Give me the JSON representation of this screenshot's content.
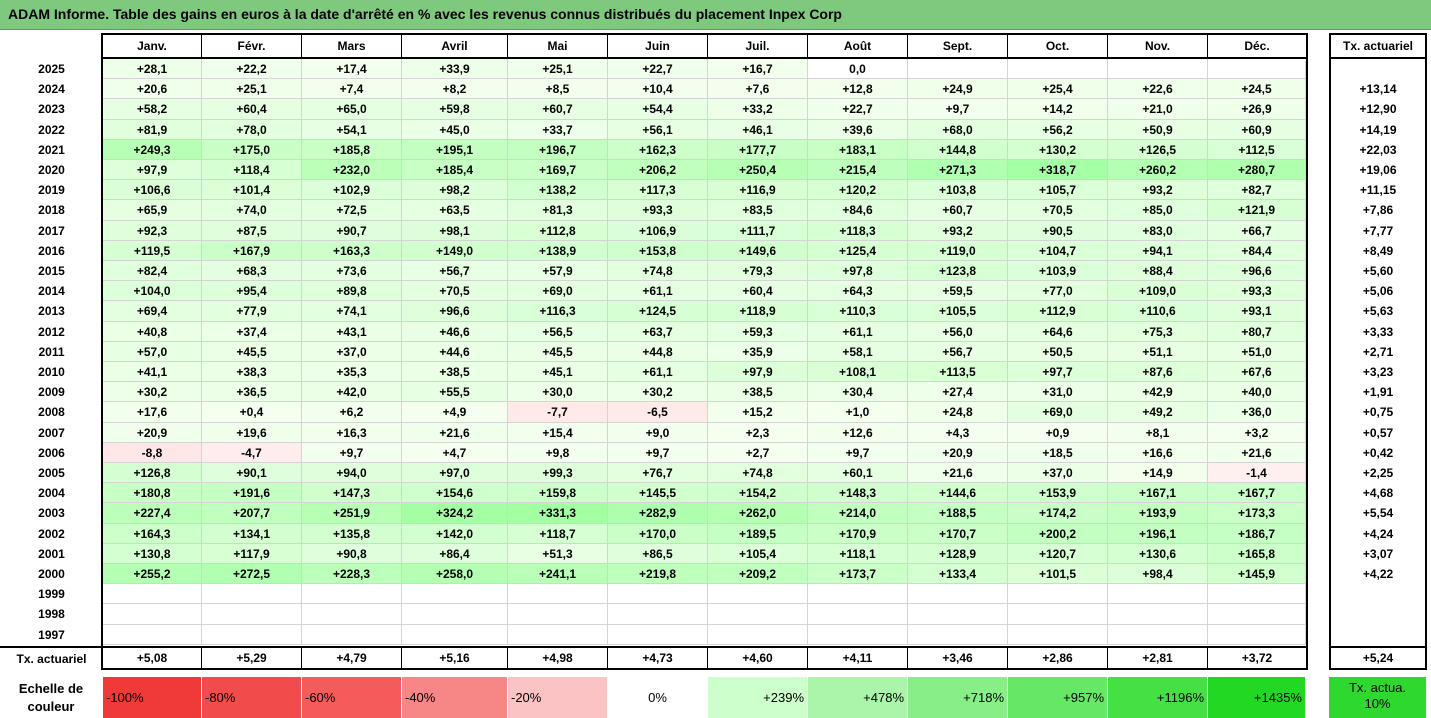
{
  "title": "ADAM Informe. Table des gains en euros à la date d'arrêté en % avec les revenus connus distribués du placement Inpex Corp",
  "months": [
    "Janv.",
    "Févr.",
    "Mars",
    "Avril",
    "Mai",
    "Juin",
    "Juil.",
    "Août",
    "Sept.",
    "Oct.",
    "Nov.",
    "Déc."
  ],
  "actuarial_header": "Tx. actuariel",
  "rows": [
    {
      "year": "2025",
      "values": [
        "+28,1",
        "+22,2",
        "+17,4",
        "+33,9",
        "+25,1",
        "+22,7",
        "+16,7",
        "0,0",
        "",
        "",
        "",
        ""
      ],
      "act": ""
    },
    {
      "year": "2024",
      "values": [
        "+20,6",
        "+25,1",
        "+7,4",
        "+8,2",
        "+8,5",
        "+10,4",
        "+7,6",
        "+12,8",
        "+24,9",
        "+25,4",
        "+22,6",
        "+24,5"
      ],
      "act": "+13,14"
    },
    {
      "year": "2023",
      "values": [
        "+58,2",
        "+60,4",
        "+65,0",
        "+59,8",
        "+60,7",
        "+54,4",
        "+33,2",
        "+22,7",
        "+9,7",
        "+14,2",
        "+21,0",
        "+26,9"
      ],
      "act": "+12,90"
    },
    {
      "year": "2022",
      "values": [
        "+81,9",
        "+78,0",
        "+54,1",
        "+45,0",
        "+33,7",
        "+56,1",
        "+46,1",
        "+39,6",
        "+68,0",
        "+56,2",
        "+50,9",
        "+60,9"
      ],
      "act": "+14,19"
    },
    {
      "year": "2021",
      "values": [
        "+249,3",
        "+175,0",
        "+185,8",
        "+195,1",
        "+196,7",
        "+162,3",
        "+177,7",
        "+183,1",
        "+144,8",
        "+130,2",
        "+126,5",
        "+112,5"
      ],
      "act": "+22,03"
    },
    {
      "year": "2020",
      "values": [
        "+97,9",
        "+118,4",
        "+232,0",
        "+185,4",
        "+169,7",
        "+206,2",
        "+250,4",
        "+215,4",
        "+271,3",
        "+318,7",
        "+260,2",
        "+280,7"
      ],
      "act": "+19,06"
    },
    {
      "year": "2019",
      "values": [
        "+106,6",
        "+101,4",
        "+102,9",
        "+98,2",
        "+138,2",
        "+117,3",
        "+116,9",
        "+120,2",
        "+103,8",
        "+105,7",
        "+93,2",
        "+82,7"
      ],
      "act": "+11,15"
    },
    {
      "year": "2018",
      "values": [
        "+65,9",
        "+74,0",
        "+72,5",
        "+63,5",
        "+81,3",
        "+93,3",
        "+83,5",
        "+84,6",
        "+60,7",
        "+70,5",
        "+85,0",
        "+121,9"
      ],
      "act": "+7,86"
    },
    {
      "year": "2017",
      "values": [
        "+92,3",
        "+87,5",
        "+90,7",
        "+98,1",
        "+112,8",
        "+106,9",
        "+111,7",
        "+118,3",
        "+93,2",
        "+90,5",
        "+83,0",
        "+66,7"
      ],
      "act": "+7,77"
    },
    {
      "year": "2016",
      "values": [
        "+119,5",
        "+167,9",
        "+163,3",
        "+149,0",
        "+138,9",
        "+153,8",
        "+149,6",
        "+125,4",
        "+119,0",
        "+104,7",
        "+94,1",
        "+84,4"
      ],
      "act": "+8,49"
    },
    {
      "year": "2015",
      "values": [
        "+82,4",
        "+68,3",
        "+73,6",
        "+56,7",
        "+57,9",
        "+74,8",
        "+79,3",
        "+97,8",
        "+123,8",
        "+103,9",
        "+88,4",
        "+96,6"
      ],
      "act": "+5,60"
    },
    {
      "year": "2014",
      "values": [
        "+104,0",
        "+95,4",
        "+89,8",
        "+70,5",
        "+69,0",
        "+61,1",
        "+60,4",
        "+64,3",
        "+59,5",
        "+77,0",
        "+109,0",
        "+93,3"
      ],
      "act": "+5,06"
    },
    {
      "year": "2013",
      "values": [
        "+69,4",
        "+77,9",
        "+74,1",
        "+96,6",
        "+116,3",
        "+124,5",
        "+118,9",
        "+110,3",
        "+105,5",
        "+112,9",
        "+110,6",
        "+93,1"
      ],
      "act": "+5,63"
    },
    {
      "year": "2012",
      "values": [
        "+40,8",
        "+37,4",
        "+43,1",
        "+46,6",
        "+56,5",
        "+63,7",
        "+59,3",
        "+61,1",
        "+56,0",
        "+64,6",
        "+75,3",
        "+80,7"
      ],
      "act": "+3,33"
    },
    {
      "year": "2011",
      "values": [
        "+57,0",
        "+45,5",
        "+37,0",
        "+44,6",
        "+45,5",
        "+44,8",
        "+35,9",
        "+58,1",
        "+56,7",
        "+50,5",
        "+51,1",
        "+51,0"
      ],
      "act": "+2,71"
    },
    {
      "year": "2010",
      "values": [
        "+41,1",
        "+38,3",
        "+35,3",
        "+38,5",
        "+45,1",
        "+61,1",
        "+97,9",
        "+108,1",
        "+113,5",
        "+97,7",
        "+87,6",
        "+67,6"
      ],
      "act": "+3,23"
    },
    {
      "year": "2009",
      "values": [
        "+30,2",
        "+36,5",
        "+42,0",
        "+55,5",
        "+30,0",
        "+30,2",
        "+38,5",
        "+30,4",
        "+27,4",
        "+31,0",
        "+42,9",
        "+40,0"
      ],
      "act": "+1,91"
    },
    {
      "year": "2008",
      "values": [
        "+17,6",
        "+0,4",
        "+6,2",
        "+4,9",
        "-7,7",
        "-6,5",
        "+15,2",
        "+1,0",
        "+24,8",
        "+69,0",
        "+49,2",
        "+36,0"
      ],
      "act": "+0,75"
    },
    {
      "year": "2007",
      "values": [
        "+20,9",
        "+19,6",
        "+16,3",
        "+21,6",
        "+15,4",
        "+9,0",
        "+2,3",
        "+12,6",
        "+4,3",
        "+0,9",
        "+8,1",
        "+3,2"
      ],
      "act": "+0,57"
    },
    {
      "year": "2006",
      "values": [
        "-8,8",
        "-4,7",
        "+9,7",
        "+4,7",
        "+9,8",
        "+9,7",
        "+2,7",
        "+9,7",
        "+20,9",
        "+18,5",
        "+16,6",
        "+21,6"
      ],
      "act": "+0,42"
    },
    {
      "year": "2005",
      "values": [
        "+126,8",
        "+90,1",
        "+94,0",
        "+97,0",
        "+99,3",
        "+76,7",
        "+74,8",
        "+60,1",
        "+21,6",
        "+37,0",
        "+14,9",
        "-1,4"
      ],
      "act": "+2,25"
    },
    {
      "year": "2004",
      "values": [
        "+180,8",
        "+191,6",
        "+147,3",
        "+154,6",
        "+159,8",
        "+145,5",
        "+154,2",
        "+148,3",
        "+144,6",
        "+153,9",
        "+167,1",
        "+167,7"
      ],
      "act": "+4,68"
    },
    {
      "year": "2003",
      "values": [
        "+227,4",
        "+207,7",
        "+251,9",
        "+324,2",
        "+331,3",
        "+282,9",
        "+262,0",
        "+214,0",
        "+188,5",
        "+174,2",
        "+193,9",
        "+173,3"
      ],
      "act": "+5,54"
    },
    {
      "year": "2002",
      "values": [
        "+164,3",
        "+134,1",
        "+135,8",
        "+142,0",
        "+118,7",
        "+170,0",
        "+189,5",
        "+170,9",
        "+170,7",
        "+200,2",
        "+196,1",
        "+186,7"
      ],
      "act": "+4,24"
    },
    {
      "year": "2001",
      "values": [
        "+130,8",
        "+117,9",
        "+90,8",
        "+86,4",
        "+51,3",
        "+86,5",
        "+105,4",
        "+118,1",
        "+128,9",
        "+120,7",
        "+130,6",
        "+165,8"
      ],
      "act": "+3,07"
    },
    {
      "year": "2000",
      "values": [
        "+255,2",
        "+272,5",
        "+228,3",
        "+258,0",
        "+241,1",
        "+219,8",
        "+209,2",
        "+173,7",
        "+133,4",
        "+101,5",
        "+98,4",
        "+145,9"
      ],
      "act": "+4,22"
    },
    {
      "year": "1999",
      "values": [
        "",
        "",
        "",
        "",
        "",
        "",
        "",
        "",
        "",
        "",
        "",
        ""
      ],
      "act": ""
    },
    {
      "year": "1998",
      "values": [
        "",
        "",
        "",
        "",
        "",
        "",
        "",
        "",
        "",
        "",
        "",
        ""
      ],
      "act": ""
    },
    {
      "year": "1997",
      "values": [
        "",
        "",
        "",
        "",
        "",
        "",
        "",
        "",
        "",
        "",
        "",
        ""
      ],
      "act": ""
    }
  ],
  "footer": {
    "label": "Tx. actuariel",
    "values": [
      "+5,08",
      "+5,29",
      "+4,79",
      "+5,16",
      "+4,98",
      "+4,73",
      "+4,60",
      "+4,11",
      "+3,46",
      "+2,86",
      "+2,81",
      "+3,72"
    ],
    "act": "+5,24"
  },
  "scale": {
    "label": "Echelle de couleur",
    "items": [
      {
        "label": "-100%",
        "color": "#f03a3a"
      },
      {
        "label": "-80%",
        "color": "#f24b4b"
      },
      {
        "label": "-60%",
        "color": "#f45b5b"
      },
      {
        "label": "-40%",
        "color": "#f78787"
      },
      {
        "label": "-20%",
        "color": "#fbc3c3"
      },
      {
        "label": "0%",
        "color": "#ffffff"
      },
      {
        "label": "+239%",
        "color": "#ccffcc"
      },
      {
        "label": "+478%",
        "color": "#aaf5aa"
      },
      {
        "label": "+718%",
        "color": "#88ef88"
      },
      {
        "label": "+957%",
        "color": "#66e866"
      },
      {
        "label": "+1196%",
        "color": "#44e044"
      },
      {
        "label": "+1435%",
        "color": "#22d822"
      }
    ],
    "target_label": "Tx. actua. 10%",
    "target_color": "#2ed82e"
  },
  "colors": {
    "title_bg": "#7fc97f",
    "positive_max": "#44e044",
    "negative_max": "#f03a3a"
  }
}
